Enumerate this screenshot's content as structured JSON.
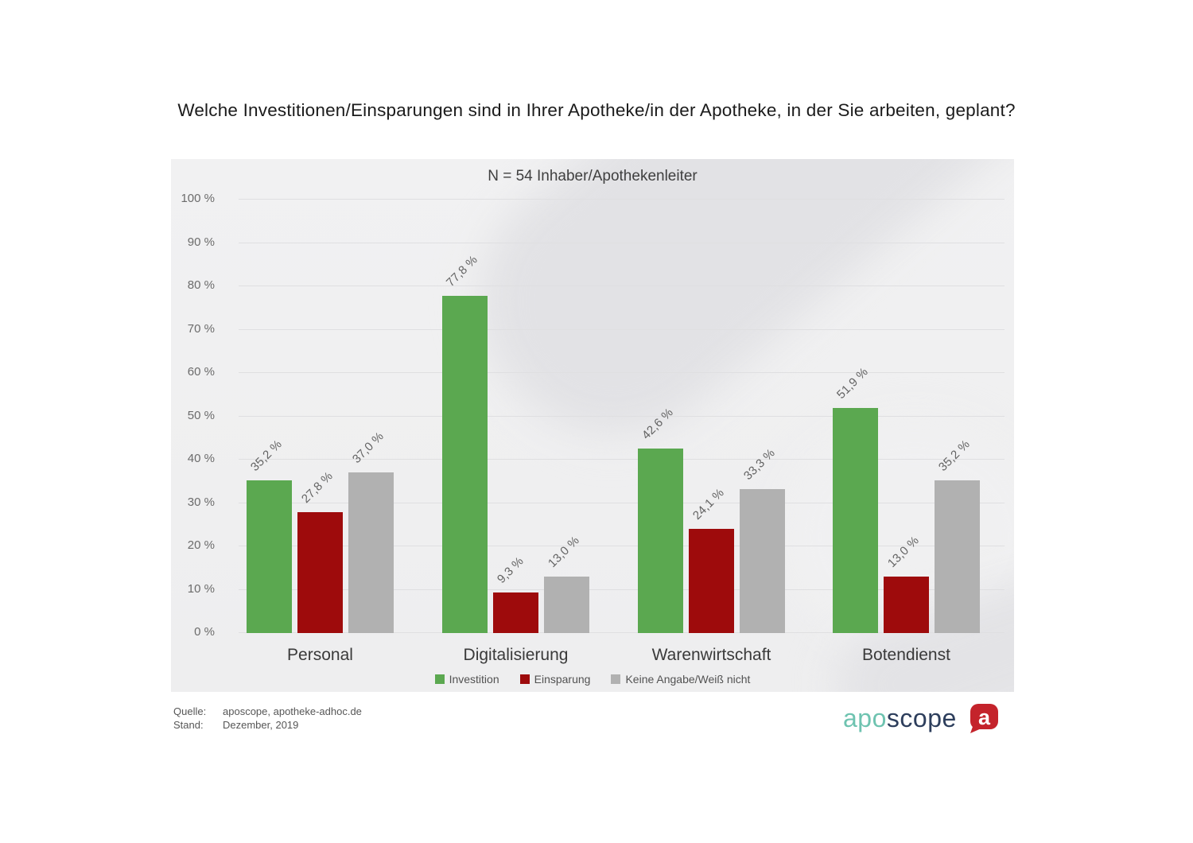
{
  "title": "Welche Investitionen/Einsparungen sind in Ihrer Apotheke/in der Apotheke, in der Sie arbeiten, geplant?",
  "chart_data": {
    "type": "bar",
    "title": "N = 54 Inhaber/Apothekenleiter",
    "categories": [
      "Personal",
      "Digitalisierung",
      "Warenwirtschaft",
      "Botendienst"
    ],
    "series": [
      {
        "name": "Investition",
        "color": "#5ba850",
        "values": [
          35.2,
          77.8,
          42.6,
          51.9
        ]
      },
      {
        "name": "Einsparung",
        "color": "#9e0b0c",
        "values": [
          27.8,
          9.3,
          24.1,
          13.0
        ]
      },
      {
        "name": "Keine Angabe/Weiß nicht",
        "color": "#b1b1b1",
        "values": [
          37.0,
          13.0,
          33.3,
          35.2
        ]
      }
    ],
    "value_label_suffix": " %",
    "decimal_separator": ",",
    "ylim": [
      0,
      100
    ],
    "yticks": [
      "0 %",
      "10 %",
      "20 %",
      "30 %",
      "40 %",
      "50 %",
      "60 %",
      "70 %",
      "80 %",
      "90 %",
      "100 %"
    ],
    "grid": true,
    "legend_position": "bottom"
  },
  "footer": {
    "source_label": "Quelle:",
    "source_value": "aposcope, apotheke-adhoc.de",
    "date_label": "Stand:",
    "date_value": "Dezember,  2019"
  },
  "logo": {
    "part1": "apo",
    "part2": "scope",
    "part1_color": "#6ec3b0",
    "part2_color": "#2d3e5c",
    "icon_letter": "a",
    "icon_color": "#c4232b"
  }
}
